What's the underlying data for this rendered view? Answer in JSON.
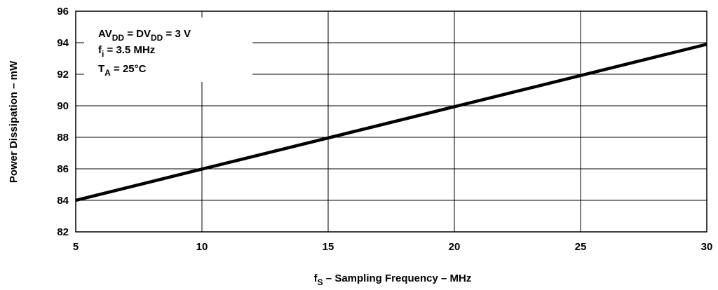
{
  "chart_data": {
    "type": "line",
    "x": [
      5,
      30
    ],
    "series": [
      {
        "values": [
          84.0,
          93.9
        ]
      }
    ],
    "xlim": [
      5,
      30
    ],
    "ylim": [
      82,
      96
    ],
    "x_ticks": [
      "5",
      "10",
      "15",
      "20",
      "25",
      "30"
    ],
    "y_ticks": [
      "82",
      "84",
      "86",
      "88",
      "90",
      "92",
      "94",
      "96"
    ],
    "xlabel": {
      "main": "f",
      "sub": "S",
      "rest": " – Sampling Frequency – MHz"
    },
    "ylabel": "Power Dissipation – mW",
    "grid": true,
    "annotation": {
      "line1": {
        "a": "AV",
        "a_sub": "DD",
        "b": " = DV",
        "b_sub": "DD",
        "c": " = 3 V"
      },
      "line2": {
        "a": "f",
        "a_sub": "i",
        "b": " = 3.5  MHz"
      },
      "line3": {
        "a": "T",
        "a_sub": "A",
        "b": " = 25°C"
      }
    },
    "colors": {
      "line": "#000000",
      "grid": "#000000",
      "background": "#ffffff"
    }
  }
}
